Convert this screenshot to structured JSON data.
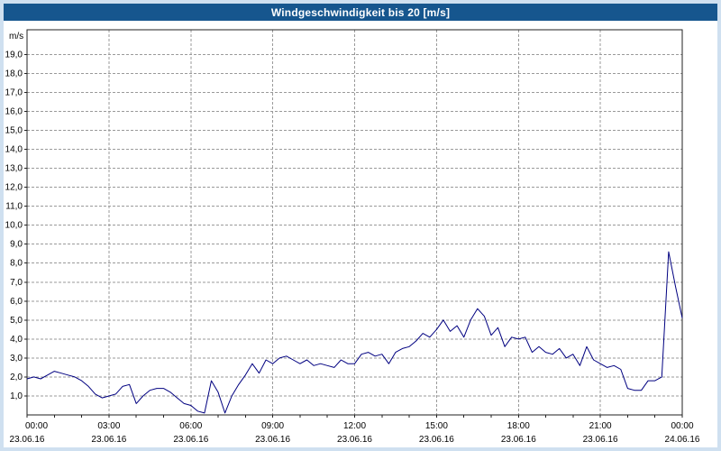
{
  "window": {
    "title": "Windgeschwindigkeit bis 20 [m/s]"
  },
  "colors": {
    "header_bg": "#16568e",
    "header_text": "#ffffff",
    "page_bg": "#cfe0f0",
    "panel_bg": "#ffffff",
    "grid": "#9a9a9a",
    "axis": "#222222",
    "line": "#000080"
  },
  "chart_data": {
    "type": "line",
    "title": "Windgeschwindigkeit bis 20 [m/s]",
    "xlabel": "",
    "ylabel": "m/s",
    "ylim": [
      0,
      20.3
    ],
    "xlim_hours": [
      0,
      24
    ],
    "grid": true,
    "legend": "none",
    "line_color": "#000080",
    "y_tick_values": [
      1,
      2,
      3,
      4,
      5,
      6,
      7,
      8,
      9,
      10,
      11,
      12,
      13,
      14,
      15,
      16,
      17,
      18,
      19
    ],
    "y_tick_labels": [
      "1,0",
      "2,0",
      "3,0",
      "4,0",
      "5,0",
      "6,0",
      "7,0",
      "8,0",
      "9,0",
      "10,0",
      "11,0",
      "12,0",
      "13,0",
      "14,0",
      "15,0",
      "16,0",
      "17,0",
      "18,0",
      "19,0"
    ],
    "x_ticks": [
      {
        "hour": 0,
        "time": "00:00",
        "date": "23.06.16"
      },
      {
        "hour": 3,
        "time": "03:00",
        "date": "23.06.16"
      },
      {
        "hour": 6,
        "time": "06:00",
        "date": "23.06.16"
      },
      {
        "hour": 9,
        "time": "09:00",
        "date": "23.06.16"
      },
      {
        "hour": 12,
        "time": "12:00",
        "date": "23.06.16"
      },
      {
        "hour": 15,
        "time": "15:00",
        "date": "23.06.16"
      },
      {
        "hour": 18,
        "time": "18:00",
        "date": "23.06.16"
      },
      {
        "hour": 21,
        "time": "21:00",
        "date": "23.06.16"
      },
      {
        "hour": 24,
        "time": "00:00",
        "date": "24.06.16"
      }
    ],
    "series": [
      {
        "name": "Windgeschwindigkeit",
        "unit": "m/s",
        "x_start_hour": 0,
        "x_step_hours": 0.25,
        "values": [
          1.9,
          2.0,
          1.9,
          2.1,
          2.3,
          2.2,
          2.1,
          2.0,
          1.8,
          1.5,
          1.1,
          0.9,
          1.0,
          1.1,
          1.5,
          1.6,
          0.6,
          1.0,
          1.3,
          1.4,
          1.4,
          1.2,
          0.9,
          0.6,
          0.5,
          0.2,
          0.1,
          1.8,
          1.2,
          0.1,
          1.0,
          1.6,
          2.1,
          2.7,
          2.2,
          2.9,
          2.7,
          3.0,
          3.1,
          2.9,
          2.7,
          2.9,
          2.6,
          2.7,
          2.6,
          2.5,
          2.9,
          2.7,
          2.7,
          3.2,
          3.3,
          3.1,
          3.2,
          2.7,
          3.3,
          3.5,
          3.6,
          3.9,
          4.3,
          4.1,
          4.5,
          5.0,
          4.4,
          4.7,
          4.1,
          5.0,
          5.6,
          5.2,
          4.2,
          4.6,
          3.6,
          4.1,
          4.0,
          4.1,
          3.3,
          3.6,
          3.3,
          3.2,
          3.5,
          3.0,
          3.2,
          2.6,
          3.6,
          2.9,
          2.7,
          2.5,
          2.6,
          2.4,
          1.4,
          1.3,
          1.3,
          1.8,
          1.8,
          2.0,
          8.6,
          6.8,
          5.1
        ]
      }
    ]
  }
}
